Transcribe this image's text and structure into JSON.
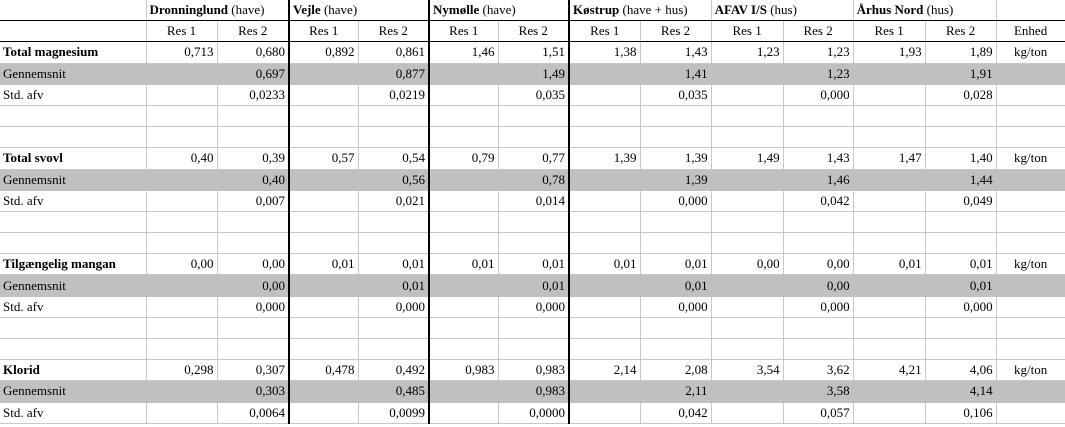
{
  "header": {
    "sites": [
      {
        "name": "Dronninglund",
        "type": "(have)"
      },
      {
        "name": "Vejle",
        "type": "(have)"
      },
      {
        "name": "Nymølle",
        "type": "(have)"
      },
      {
        "name": "Køstrup",
        "type": "(have + hus)"
      },
      {
        "name": "AFAV I/S",
        "type": "(hus)"
      },
      {
        "name": "Århus Nord",
        "type": "(hus)"
      }
    ],
    "res1": "Res 1",
    "res2": "Res 2",
    "unit_header": "Enhed"
  },
  "labels": {
    "avg": "Gennemsnit",
    "std": "Std. afv"
  },
  "groups": [
    {
      "name": "Total magnesium",
      "unit": "kg/ton",
      "values": [
        [
          "0,713",
          "0,680"
        ],
        [
          "0,892",
          "0,861"
        ],
        [
          "1,46",
          "1,51"
        ],
        [
          "1,38",
          "1,43"
        ],
        [
          "1,23",
          "1,23"
        ],
        [
          "1,93",
          "1,89"
        ]
      ],
      "avg": [
        "0,697",
        "0,877",
        "1,49",
        "1,41",
        "1,23",
        "1,91"
      ],
      "std": [
        "0,0233",
        "0,0219",
        "0,035",
        "0,035",
        "0,000",
        "0,028"
      ]
    },
    {
      "name": "Total svovl",
      "unit": "kg/ton",
      "values": [
        [
          "0,40",
          "0,39"
        ],
        [
          "0,57",
          "0,54"
        ],
        [
          "0,79",
          "0,77"
        ],
        [
          "1,39",
          "1,39"
        ],
        [
          "1,49",
          "1,43"
        ],
        [
          "1,47",
          "1,40"
        ]
      ],
      "avg": [
        "0,40",
        "0,56",
        "0,78",
        "1,39",
        "1,46",
        "1,44"
      ],
      "std": [
        "0,007",
        "0,021",
        "0,014",
        "0,000",
        "0,042",
        "0,049"
      ]
    },
    {
      "name": "Tilgængelig mangan",
      "unit": "kg/ton",
      "values": [
        [
          "0,00",
          "0,00"
        ],
        [
          "0,01",
          "0,01"
        ],
        [
          "0,01",
          "0,01"
        ],
        [
          "0,01",
          "0,01"
        ],
        [
          "0,00",
          "0,00"
        ],
        [
          "0,01",
          "0,01"
        ]
      ],
      "avg": [
        "0,00",
        "0,01",
        "0,01",
        "0,01",
        "0,00",
        "0,01"
      ],
      "std": [
        "0,000",
        "0,000",
        "0,000",
        "0,000",
        "0,000",
        "0,000"
      ]
    },
    {
      "name": "Klorid",
      "unit": "kg/ton",
      "values": [
        [
          "0,298",
          "0,307"
        ],
        [
          "0,478",
          "0,492"
        ],
        [
          "0,983",
          "0,983"
        ],
        [
          "2,14",
          "2,08"
        ],
        [
          "3,54",
          "3,62"
        ],
        [
          "4,21",
          "4,06"
        ]
      ],
      "avg": [
        "0,303",
        "0,485",
        "0,983",
        "2,11",
        "3,58",
        "4,14"
      ],
      "std": [
        "0,0064",
        "0,0099",
        "0,0000",
        "0,042",
        "0,057",
        "0,106"
      ]
    }
  ]
}
